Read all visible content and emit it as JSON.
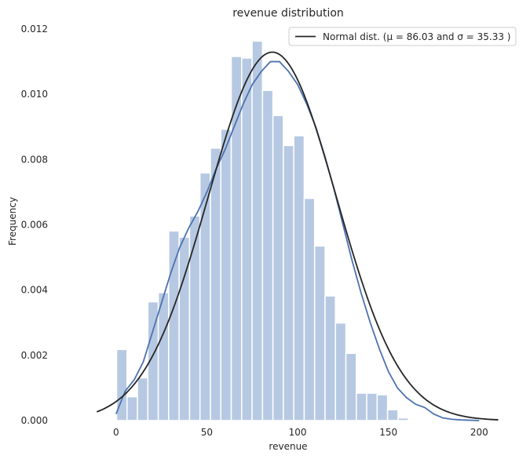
{
  "chart_data": {
    "type": "bar",
    "title": "revenue distribution",
    "xlabel": "revenue",
    "ylabel": "Frequency",
    "xlim": [
      -25,
      215
    ],
    "ylim": [
      0,
      0.012
    ],
    "xticks": [
      {
        "value": 0,
        "label": "0"
      },
      {
        "value": 50,
        "label": "50"
      },
      {
        "value": 100,
        "label": "100"
      },
      {
        "value": 150,
        "label": "150"
      },
      {
        "value": 200,
        "label": "200"
      }
    ],
    "yticks": [
      {
        "value": 0,
        "label": "0.000"
      },
      {
        "value": 0.002,
        "label": "0.002"
      },
      {
        "value": 0.004,
        "label": "0.004"
      },
      {
        "value": 0.006,
        "label": "0.006"
      },
      {
        "value": 0.008,
        "label": "0.008"
      },
      {
        "value": 0.01,
        "label": "0.010"
      },
      {
        "value": 0.012,
        "label": "0.012"
      }
    ],
    "grid": false,
    "legend_position": "top-right",
    "histogram": {
      "bin_start": 0.3,
      "bin_width": 5.74,
      "color": "#b7c9e2",
      "values": [
        0.00218,
        0.00073,
        0.00131,
        0.00364,
        0.00392,
        0.00581,
        0.00562,
        0.00627,
        0.00759,
        0.00835,
        0.00893,
        0.01116,
        0.01111,
        0.01163,
        0.01012,
        0.00935,
        0.00843,
        0.00873,
        0.00681,
        0.00535,
        0.00382,
        0.00299,
        0.00206,
        0.00084,
        0.00084,
        0.00079,
        0.00033,
        8e-05
      ]
    },
    "kde": {
      "color": "#4c72b0",
      "x": [
        0,
        5,
        10,
        15,
        20,
        25,
        30,
        35,
        40,
        45,
        50,
        55,
        60,
        65,
        70,
        75,
        80,
        85,
        90,
        95,
        100,
        105,
        110,
        115,
        120,
        125,
        130,
        135,
        140,
        145,
        150,
        155,
        160,
        165,
        170,
        175,
        180,
        185,
        190,
        195,
        200
      ],
      "y": [
        0.0002,
        0.0009,
        0.00125,
        0.0018,
        0.0027,
        0.0036,
        0.0045,
        0.0053,
        0.0059,
        0.0064,
        0.007,
        0.0077,
        0.0083,
        0.009,
        0.0097,
        0.0103,
        0.0107,
        0.011,
        0.011,
        0.0107,
        0.0103,
        0.0097,
        0.009,
        0.0081,
        0.0071,
        0.006,
        0.0049,
        0.0039,
        0.003,
        0.0022,
        0.0015,
        0.001,
        0.0007,
        0.0005,
        0.0004,
        0.0002,
        8e-05,
        4e-05,
        2e-05,
        1e-05,
        0.0
      ]
    },
    "series": [
      {
        "name": "Normal dist. (μ =  86.03 and σ =  35.33 )",
        "type": "normal_pdf",
        "mu": 86.03,
        "sigma": 35.33,
        "x_range": [
          -10.6,
          210.5
        ],
        "color": "#262626"
      }
    ]
  }
}
